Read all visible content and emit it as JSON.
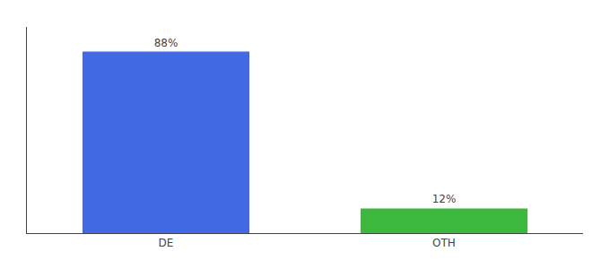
{
  "chart_data": {
    "type": "bar",
    "categories": [
      "DE",
      "OTH"
    ],
    "values": [
      88,
      12
    ],
    "value_labels": [
      "88%",
      "12%"
    ],
    "colors": [
      "#4169e1",
      "#3cb83c"
    ],
    "ylim": [
      0,
      100
    ],
    "grid": false,
    "data_labels": true,
    "tick_labels": "x"
  }
}
